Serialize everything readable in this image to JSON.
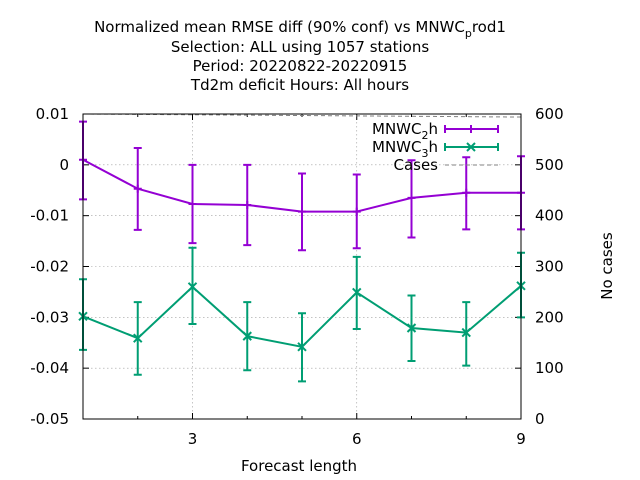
{
  "chart_data": {
    "type": "line",
    "title_lines": [
      {
        "before": "Normalized mean RMSE diff (90% conf) vs MNWC",
        "sub": "p",
        "after": "rod1"
      },
      {
        "text": "Selection: ALL using  1057 stations"
      },
      {
        "text": "Period: 20220822-20220915"
      },
      {
        "text": "Td2m deficit   Hours:  All hours"
      }
    ],
    "xlabel": "Forecast length",
    "ylabel": "",
    "y2label": "No cases",
    "xlim": [
      1,
      9
    ],
    "ylim": [
      -0.05,
      0.01
    ],
    "y2lim": [
      0,
      600
    ],
    "xticks": [
      3,
      6,
      9
    ],
    "yticks": [
      -0.05,
      -0.04,
      -0.03,
      -0.02,
      -0.01,
      0,
      0.01
    ],
    "ytick_labels": [
      "-0.05",
      "-0.04",
      "-0.03",
      "-0.02",
      "-0.01",
      "0",
      "0.01"
    ],
    "y2ticks": [
      0,
      100,
      200,
      300,
      400,
      500,
      600
    ],
    "grid": true,
    "legend_position": "top-right",
    "series": [
      {
        "name_main": "MNWC",
        "name_sub": "2",
        "name_after": "h",
        "color": "#9400d3",
        "marker": "plus",
        "axis": "y1",
        "x": [
          1,
          2,
          3,
          4,
          5,
          6,
          7,
          8,
          9
        ],
        "y": [
          0.001,
          -0.0047,
          -0.0077,
          -0.0079,
          -0.0092,
          -0.0092,
          -0.0065,
          -0.0055,
          -0.0055
        ],
        "err_low": [
          -0.0068,
          -0.0128,
          -0.0154,
          -0.0158,
          -0.0168,
          -0.0164,
          -0.0143,
          -0.0127,
          -0.0127
        ],
        "err_high": [
          0.0085,
          0.0033,
          0.0,
          0.0,
          -0.0017,
          -0.0019,
          0.0009,
          0.0015,
          0.0017
        ]
      },
      {
        "name_main": "MNWC",
        "name_sub": "3",
        "name_after": "h",
        "color": "#009e73",
        "marker": "cross",
        "axis": "y1",
        "x": [
          1,
          2,
          3,
          4,
          5,
          6,
          7,
          8,
          9
        ],
        "y": [
          -0.0298,
          -0.0341,
          -0.024,
          -0.0337,
          -0.0358,
          -0.0251,
          -0.0321,
          -0.033,
          -0.0238
        ],
        "err_low": [
          -0.0364,
          -0.0413,
          -0.0313,
          -0.0404,
          -0.0426,
          -0.0323,
          -0.0386,
          -0.0395,
          -0.03
        ],
        "err_high": [
          -0.0225,
          -0.027,
          -0.0163,
          -0.027,
          -0.0292,
          -0.0181,
          -0.0257,
          -0.027,
          -0.0173
        ]
      },
      {
        "name_main": "Cases",
        "name_sub": "",
        "name_after": "",
        "color": "#808080",
        "marker": "none",
        "dashed": true,
        "axis": "y2",
        "x": [
          1,
          9
        ],
        "y": [
          600,
          594
        ]
      }
    ]
  }
}
